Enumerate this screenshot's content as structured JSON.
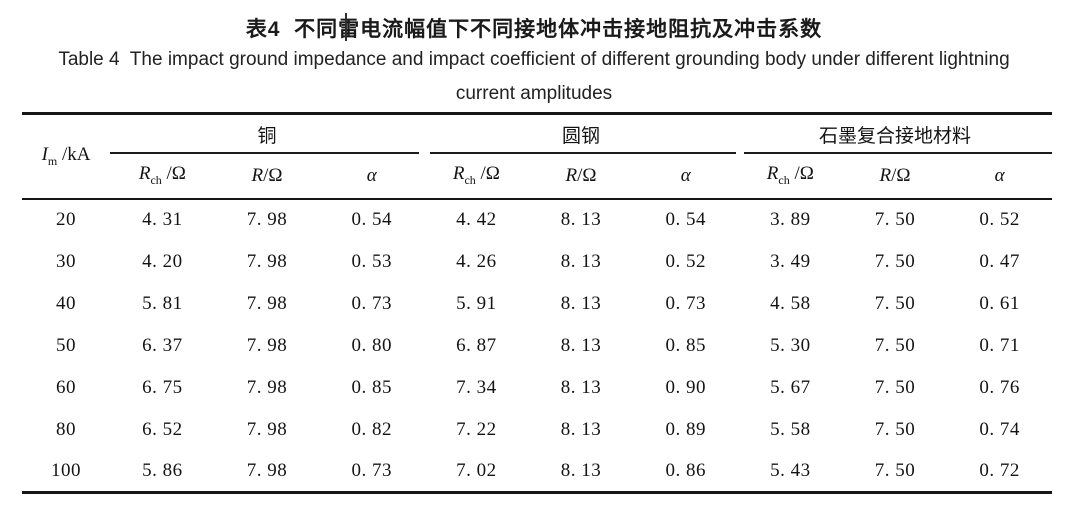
{
  "page": {
    "background": "#ffffff",
    "text_color": "#1b1b1b",
    "rule_color": "#161616"
  },
  "title": {
    "zh": "表4  不同雷电流幅值下不同接地体冲击接地阻抗及冲击系数",
    "en_line1": "Table 4  The impact ground impedance and impact coefficient of different grounding body under different lightning",
    "en_line2": "current amplitudes"
  },
  "table": {
    "row_header": {
      "base": "I",
      "sub": "m",
      "rest": " /kA"
    },
    "groups": [
      {
        "label": "铜"
      },
      {
        "label": "圆钢"
      },
      {
        "label": "石墨复合接地材料"
      }
    ],
    "sub_columns": {
      "rch": {
        "base": "R",
        "sub": "ch",
        "rest": " /Ω"
      },
      "r": {
        "base": "R",
        "sub": "",
        "rest": "/Ω"
      },
      "alpha": "α"
    },
    "rows": [
      {
        "values": [
          "20",
          "4. 31",
          "7. 98",
          "0. 54",
          "4. 42",
          "8. 13",
          "0. 54",
          "3. 89",
          "7. 50",
          "0. 52"
        ]
      },
      {
        "values": [
          "30",
          "4. 20",
          "7. 98",
          "0. 53",
          "4. 26",
          "8. 13",
          "0. 52",
          "3. 49",
          "7. 50",
          "0. 47"
        ]
      },
      {
        "values": [
          "40",
          "5. 81",
          "7. 98",
          "0. 73",
          "5. 91",
          "8. 13",
          "0. 73",
          "4. 58",
          "7. 50",
          "0. 61"
        ]
      },
      {
        "values": [
          "50",
          "6. 37",
          "7. 98",
          "0. 80",
          "6. 87",
          "8. 13",
          "0. 85",
          "5. 30",
          "7. 50",
          "0. 71"
        ]
      },
      {
        "values": [
          "60",
          "6. 75",
          "7. 98",
          "0. 85",
          "7. 34",
          "8. 13",
          "0. 90",
          "5. 67",
          "7. 50",
          "0. 76"
        ]
      },
      {
        "values": [
          "80",
          "6. 52",
          "7. 98",
          "0. 82",
          "7. 22",
          "8. 13",
          "0. 89",
          "5. 58",
          "7. 50",
          "0. 74"
        ]
      },
      {
        "values": [
          "100",
          "5. 86",
          "7. 98",
          "0. 73",
          "7. 02",
          "8. 13",
          "0. 86",
          "5. 43",
          "7. 50",
          "0. 72"
        ]
      }
    ]
  }
}
